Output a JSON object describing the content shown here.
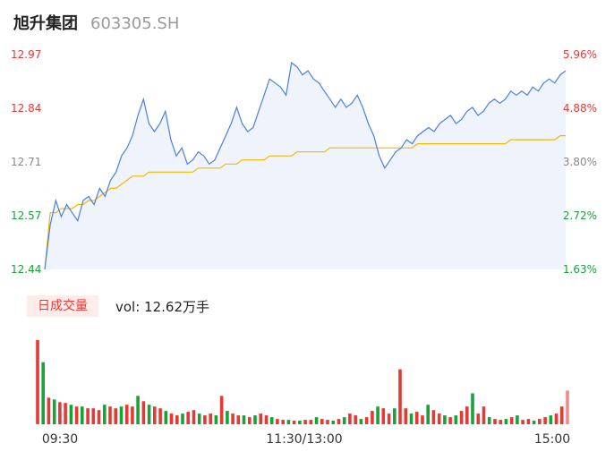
{
  "header": {
    "name": "旭升集团",
    "code": "603305.SH"
  },
  "colors": {
    "up": "#e53935",
    "down": "#1aa23a",
    "neutral": "#888888",
    "price_line": "#4a7ee8",
    "avg_line": "#f5b800",
    "area_fill": "#eef3fc"
  },
  "volume_label": {
    "tag": "日成交量",
    "text": "vol: 12.62万手"
  },
  "chart_data": {
    "type": "line",
    "y_left_ticks": [
      "12.97",
      "12.84",
      "12.71",
      "12.57",
      "12.44"
    ],
    "y_right_ticks": [
      "5.96%",
      "4.88%",
      "3.80%",
      "2.72%",
      "1.63%"
    ],
    "x_ticks": [
      "09:30",
      "11:30/13:00",
      "15:00"
    ],
    "ylim": [
      12.44,
      12.97
    ],
    "series": [
      {
        "name": "price",
        "values": [
          12.44,
          12.55,
          12.61,
          12.57,
          12.6,
          12.58,
          12.56,
          12.61,
          12.62,
          12.6,
          12.64,
          12.62,
          12.66,
          12.68,
          12.72,
          12.74,
          12.77,
          12.82,
          12.86,
          12.8,
          12.78,
          12.8,
          12.83,
          12.76,
          12.72,
          12.74,
          12.7,
          12.71,
          12.73,
          12.72,
          12.7,
          12.71,
          12.74,
          12.77,
          12.8,
          12.84,
          12.8,
          12.78,
          12.79,
          12.83,
          12.87,
          12.91,
          12.9,
          12.89,
          12.87,
          12.95,
          12.94,
          12.92,
          12.93,
          12.91,
          12.9,
          12.88,
          12.86,
          12.84,
          12.86,
          12.84,
          12.85,
          12.87,
          12.84,
          12.8,
          12.77,
          12.72,
          12.69,
          12.71,
          12.73,
          12.74,
          12.76,
          12.75,
          12.77,
          12.78,
          12.79,
          12.78,
          12.8,
          12.81,
          12.82,
          12.8,
          12.81,
          12.83,
          12.84,
          12.82,
          12.83,
          12.85,
          12.86,
          12.85,
          12.86,
          12.88,
          12.87,
          12.88,
          12.87,
          12.89,
          12.88,
          12.9,
          12.91,
          12.9,
          12.92,
          12.93
        ]
      },
      {
        "name": "avg",
        "values": [
          12.44,
          12.58,
          12.58,
          12.59,
          12.59,
          12.59,
          12.6,
          12.6,
          12.61,
          12.61,
          12.62,
          12.63,
          12.64,
          12.64,
          12.65,
          12.66,
          12.67,
          12.67,
          12.67,
          12.68,
          12.68,
          12.68,
          12.68,
          12.68,
          12.68,
          12.68,
          12.68,
          12.68,
          12.69,
          12.69,
          12.69,
          12.69,
          12.69,
          12.7,
          12.7,
          12.7,
          12.71,
          12.71,
          12.71,
          12.71,
          12.71,
          12.72,
          12.72,
          12.72,
          12.72,
          12.72,
          12.73,
          12.73,
          12.73,
          12.73,
          12.73,
          12.73,
          12.74,
          12.74,
          12.74,
          12.74,
          12.74,
          12.74,
          12.74,
          12.74,
          12.74,
          12.74,
          12.74,
          12.74,
          12.74,
          12.74,
          12.74,
          12.74,
          12.75,
          12.75,
          12.75,
          12.75,
          12.75,
          12.75,
          12.75,
          12.75,
          12.75,
          12.75,
          12.75,
          12.75,
          12.75,
          12.75,
          12.75,
          12.75,
          12.75,
          12.76,
          12.76,
          12.76,
          12.76,
          12.76,
          12.76,
          12.76,
          12.76,
          12.76,
          12.77,
          12.77
        ]
      }
    ],
    "volume": {
      "values": [
        95,
        70,
        30,
        28,
        25,
        24,
        22,
        20,
        20,
        18,
        18,
        16,
        22,
        20,
        18,
        20,
        22,
        20,
        32,
        26,
        22,
        20,
        18,
        15,
        12,
        10,
        12,
        14,
        16,
        12,
        10,
        12,
        10,
        32,
        15,
        12,
        10,
        10,
        8,
        10,
        12,
        10,
        8,
        6,
        5,
        5,
        4,
        4,
        5,
        5,
        8,
        6,
        5,
        4,
        6,
        8,
        12,
        10,
        6,
        8,
        15,
        20,
        18,
        12,
        18,
        62,
        18,
        12,
        14,
        10,
        22,
        16,
        12,
        10,
        8,
        10,
        15,
        20,
        35,
        12,
        20,
        8,
        6,
        5,
        6,
        8,
        10,
        5,
        6,
        4,
        6,
        8,
        10,
        12,
        20,
        38
      ],
      "colors": [
        "up",
        "down",
        "up",
        "down",
        "up",
        "up",
        "down",
        "up",
        "down",
        "up",
        "up",
        "up",
        "down",
        "up",
        "up",
        "down",
        "up",
        "up",
        "down",
        "up",
        "down",
        "up",
        "up",
        "down",
        "up",
        "up",
        "down",
        "up",
        "up",
        "down",
        "up",
        "up",
        "down",
        "up",
        "down",
        "up",
        "up",
        "down",
        "up",
        "down",
        "up",
        "up",
        "down",
        "up",
        "up",
        "down",
        "up",
        "down",
        "up",
        "up",
        "down",
        "up",
        "up",
        "down",
        "up",
        "down",
        "up",
        "up",
        "down",
        "up",
        "up",
        "down",
        "up",
        "up",
        "down",
        "up",
        "up",
        "down",
        "up",
        "up",
        "down",
        "up",
        "up",
        "down",
        "up",
        "down",
        "up",
        "up",
        "down",
        "up",
        "up",
        "down",
        "up",
        "up",
        "down",
        "up",
        "down",
        "up",
        "up",
        "down",
        "up",
        "up",
        "down",
        "up",
        "up",
        "up"
      ]
    }
  }
}
